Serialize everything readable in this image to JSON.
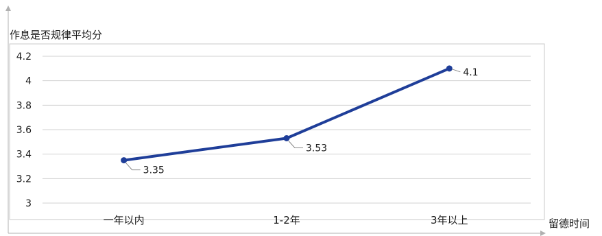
{
  "chart_data": {
    "type": "line",
    "ylabel": "作息是否规律平均分",
    "xlabel": "留德时间",
    "categories": [
      "一年以内",
      "1-2年",
      "3年以上"
    ],
    "series": [
      {
        "values": [
          3.35,
          3.53,
          4.1
        ],
        "data_labels": [
          "3.35",
          "3.53",
          "4.1"
        ]
      }
    ],
    "y_ticks": [
      "3",
      "3.2",
      "3.4",
      "3.6",
      "3.8",
      "4",
      "4.2"
    ],
    "ylim": [
      3,
      4.2
    ],
    "grid": true,
    "legend": "none",
    "colors": {
      "line": "#1f3e99",
      "grid": "#d0d0d0",
      "axis": "#b0b0b0"
    }
  }
}
